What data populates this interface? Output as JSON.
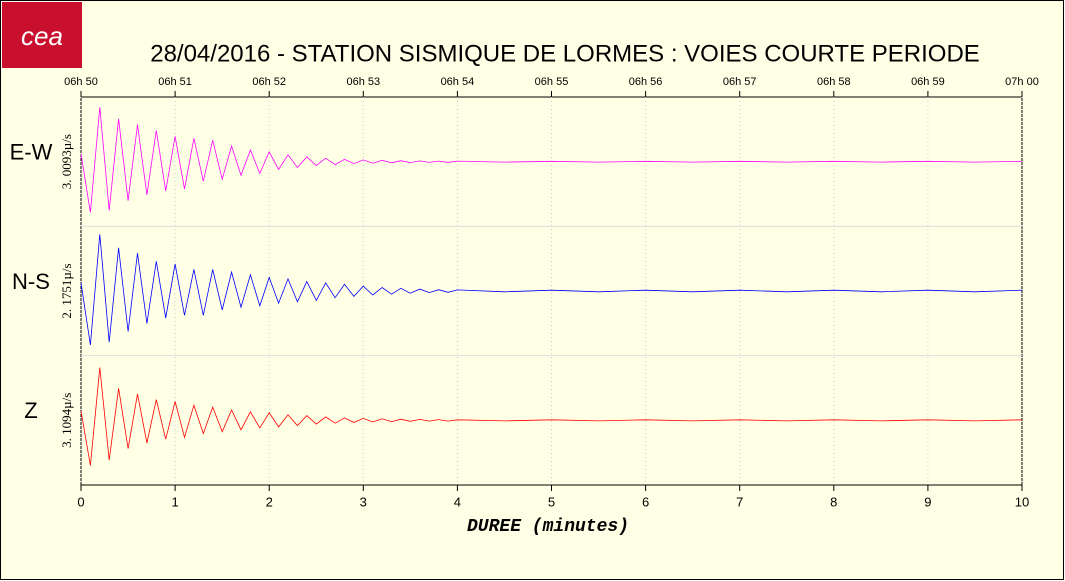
{
  "chart_data": {
    "type": "line",
    "logo": "cea",
    "title": "28/04/2016  -  STATION SISMIQUE DE LORMES : VOIES COURTE PERIODE",
    "xlabel": "DUREE (minutes)",
    "xlim": [
      0,
      10
    ],
    "xticks": [
      0,
      1,
      2,
      3,
      4,
      5,
      6,
      7,
      8,
      9,
      10
    ],
    "top_xticks": [
      {
        "value": 0,
        "label": "06h 50"
      },
      {
        "value": 1,
        "label": "06h 51"
      },
      {
        "value": 2,
        "label": "06h 52"
      },
      {
        "value": 3,
        "label": "06h 53"
      },
      {
        "value": 4,
        "label": "06h 54"
      },
      {
        "value": 5,
        "label": "06h 55"
      },
      {
        "value": 6,
        "label": "06h 56"
      },
      {
        "value": 7,
        "label": "06h 57"
      },
      {
        "value": 8,
        "label": "06h 58"
      },
      {
        "value": 9,
        "label": "06h 59"
      },
      {
        "value": 10,
        "label": "07h 00"
      }
    ],
    "grid": true,
    "x": [
      0,
      0.1,
      0.2,
      0.3,
      0.4,
      0.5,
      0.6,
      0.7,
      0.8,
      0.9,
      1,
      1.1,
      1.2,
      1.3,
      1.4,
      1.5,
      1.6,
      1.7,
      1.8,
      1.9,
      2,
      2.1,
      2.2,
      2.3,
      2.4,
      2.5,
      2.6,
      2.7,
      2.8,
      2.9,
      3,
      3.1,
      3.2,
      3.3,
      3.4,
      3.5,
      3.6,
      3.7,
      3.8,
      3.9,
      4,
      4.5,
      5,
      5.5,
      6,
      6.5,
      7,
      7.5,
      8,
      8.5,
      9,
      9.5,
      10
    ],
    "series": [
      {
        "name": "E-W",
        "color": "#ff00ff",
        "scale_label": "3. 0093µ/s",
        "ylim": [
          -3.0093,
          3.0093
        ],
        "values": [
          0.4,
          -2.6,
          2.8,
          -2.5,
          2.2,
          -2.0,
          1.9,
          -1.7,
          1.6,
          -1.5,
          1.3,
          -1.4,
          1.2,
          -1.0,
          1.1,
          -0.9,
          0.8,
          -0.7,
          0.6,
          -0.6,
          0.5,
          -0.4,
          0.35,
          -0.3,
          0.25,
          -0.2,
          0.18,
          -0.15,
          0.12,
          -0.1,
          0.09,
          -0.08,
          0.07,
          -0.06,
          0.05,
          -0.05,
          0.04,
          -0.04,
          0.03,
          -0.03,
          0.03,
          -0.02,
          0.02,
          -0.02,
          0.02,
          -0.02,
          0.02,
          -0.02,
          0.02,
          -0.02,
          0.02,
          -0.02,
          0.02
        ]
      },
      {
        "name": "N-S",
        "color": "#0000ff",
        "scale_label": "2. 1751µ/s",
        "ylim": [
          -2.1751,
          2.1751
        ],
        "values": [
          0.3,
          -2.0,
          2.1,
          -1.9,
          1.6,
          -1.5,
          1.4,
          -1.2,
          1.1,
          -1.0,
          1.0,
          -0.9,
          0.8,
          -0.9,
          0.8,
          -0.7,
          0.7,
          -0.6,
          0.6,
          -0.55,
          0.5,
          -0.45,
          0.45,
          -0.4,
          0.35,
          -0.35,
          0.3,
          -0.25,
          0.25,
          -0.2,
          0.18,
          -0.15,
          0.13,
          -0.12,
          0.1,
          -0.08,
          0.07,
          -0.06,
          0.05,
          -0.05,
          0.04,
          -0.03,
          0.03,
          -0.03,
          0.03,
          -0.03,
          0.03,
          -0.03,
          0.03,
          -0.03,
          0.03,
          -0.03,
          0.03
        ]
      },
      {
        "name": "Z",
        "color": "#ff0000",
        "scale_label": "3. 1094µ/s",
        "ylim": [
          -3.1094,
          3.1094
        ],
        "values": [
          0.5,
          -2.4,
          2.8,
          -2.1,
          1.7,
          -1.5,
          1.4,
          -1.2,
          1.1,
          -1.0,
          1.0,
          -0.9,
          0.8,
          -0.7,
          0.7,
          -0.6,
          0.55,
          -0.5,
          0.45,
          -0.4,
          0.4,
          -0.35,
          0.3,
          -0.28,
          0.25,
          -0.2,
          0.18,
          -0.15,
          0.13,
          -0.11,
          0.1,
          -0.09,
          0.08,
          -0.07,
          0.06,
          -0.05,
          0.05,
          -0.04,
          0.04,
          -0.04,
          0.03,
          -0.03,
          0.03,
          -0.03,
          0.03,
          -0.03,
          0.03,
          -0.03,
          0.03,
          -0.03,
          0.03,
          -0.03,
          0.03
        ]
      }
    ]
  }
}
